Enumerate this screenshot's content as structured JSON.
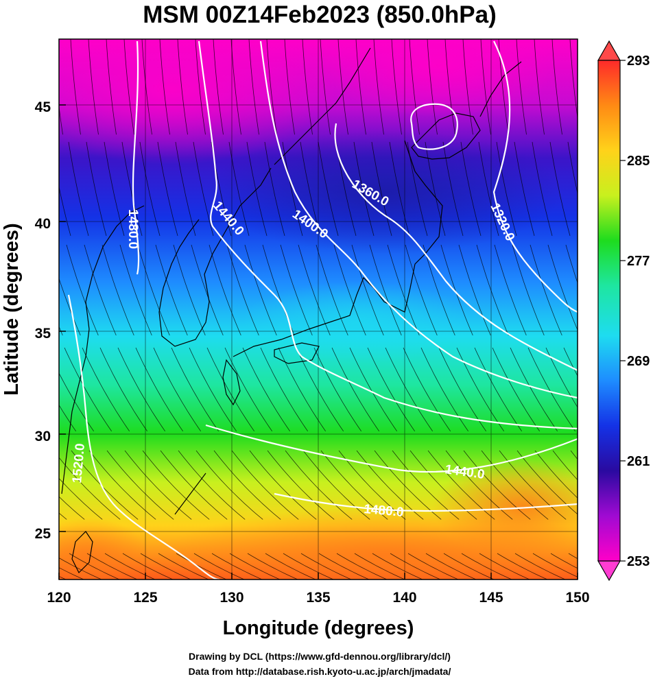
{
  "title": "MSM 00Z14Feb2023 (850.0hPa)",
  "xlabel": "Longitude (degrees)",
  "ylabel": "Latitude  (degrees)",
  "credits": {
    "line1": "Drawing by DCL (https://www.gfd-dennou.org/library/dcl/)",
    "line2": "Data from http://database.rish.kyoto-u.ac.jp/arch/jmadata/"
  },
  "colorbar": {
    "min": 253,
    "max": 293,
    "tick_labels": [
      "293",
      "285",
      "277",
      "269",
      "261",
      "253"
    ],
    "colors": [
      "#ff2a2a",
      "#ff8a14",
      "#ffd21a",
      "#c8f01e",
      "#1edc1e",
      "#1ee6a0",
      "#1edcf0",
      "#1e8cff",
      "#1432e6",
      "#2a0aa0",
      "#a00ad2",
      "#ff00c8"
    ]
  },
  "map": {
    "lon_range": [
      120,
      150
    ],
    "lat_range": [
      22.5,
      48
    ],
    "lon_ticks": [
      "120",
      "125",
      "130",
      "135",
      "140",
      "145",
      "150"
    ],
    "lat_ticks": [
      "25",
      "30",
      "35",
      "40",
      "45"
    ],
    "contour_labels": [
      "1480.0",
      "1440.0",
      "1400.0",
      "1360.0",
      "1320.0",
      "1520.0",
      "1440.0",
      "1480.0"
    ],
    "field": "850hPa temperature (shaded) with geopotential height contours and wind streamlines"
  }
}
